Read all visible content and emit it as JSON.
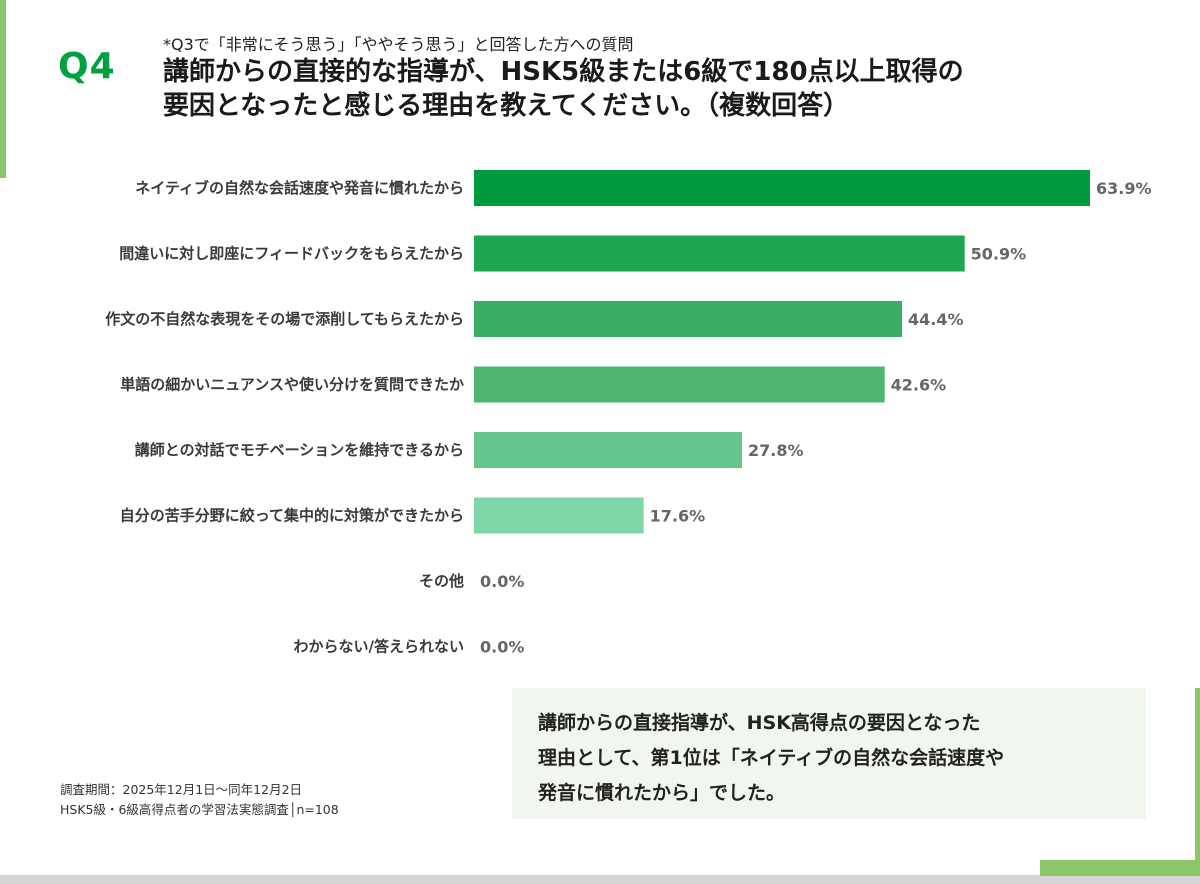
{
  "header": {
    "question_number": "Q4",
    "note": "*Q3で「非常にそう思う」「ややそう思う」と回答した方への質問",
    "title_line1": "講師からの直接的な指導が、HSK5級または6級で180点以上取得の",
    "title_line2": "要因となったと感じる理由を教えてください。（複数回答）"
  },
  "chart_data": {
    "type": "bar",
    "orientation": "horizontal",
    "categories": [
      "ネイティブの自然な会話速度や発音に慣れたから",
      "間違いに対し即座にフィードバックをもらえたから",
      "作文の不自然な表現をその場で添削してもらえたから",
      "単語の細かいニュアンスや使い分けを質問できたか",
      "講師との対話でモチベーションを維持できるから",
      "自分の苦手分野に絞って集中的に対策ができたから",
      "その他",
      "わからない/答えられない"
    ],
    "values": [
      63.9,
      50.9,
      44.4,
      42.6,
      27.8,
      17.6,
      0.0,
      0.0
    ],
    "value_labels": [
      "63.9%",
      "50.9%",
      "44.4%",
      "42.6%",
      "27.8%",
      "17.6%",
      "0.0%",
      "0.0%"
    ],
    "colors": [
      "#009a3e",
      "#1ea650",
      "#39ad64",
      "#4db570",
      "#66c48d",
      "#7fd6a8",
      "#9ad9b4",
      "#9ad9b4"
    ],
    "xlim": [
      0,
      100
    ],
    "grid": false,
    "legend": "none"
  },
  "summary": {
    "line1": "講師からの直接指導が、HSK高得点の要因となった",
    "line2": "理由として、第1位は「ネイティブの自然な会話速度や",
    "line3": "発音に慣れたから」でした。"
  },
  "footnote": {
    "period": "調査期間：2025年12月1日～同年12月2日",
    "survey": "HSK5級・6級高得点者の学習法実態調査│n=108"
  }
}
